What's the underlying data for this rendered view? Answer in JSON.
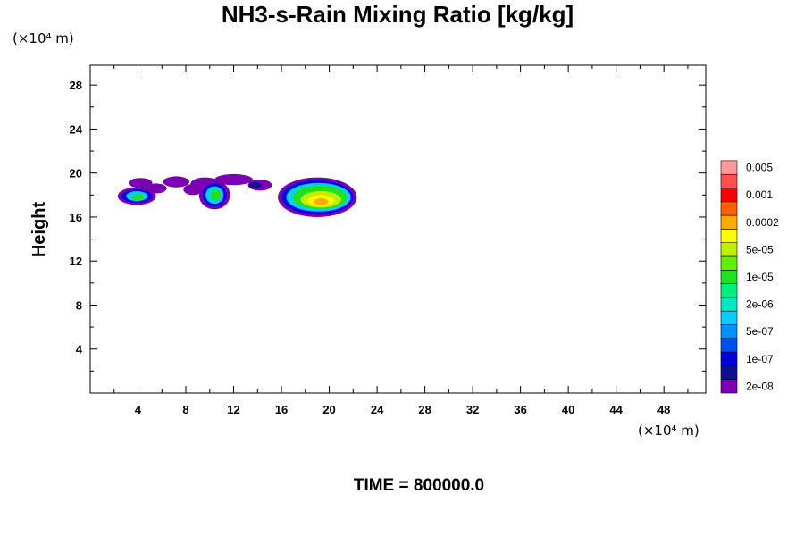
{
  "chart_data": {
    "type": "heatmap",
    "title": "NH3-s-Rain Mixing Ratio [kg/kg]",
    "xlabel": "",
    "ylabel": "Height",
    "x_unit": "(×10⁴ m)",
    "y_unit": "(×10⁴ m)",
    "footer": "TIME = 800000.0",
    "xlim": [
      0,
      51.5
    ],
    "ylim": [
      0,
      29.8
    ],
    "x_ticks": [
      4,
      8,
      12,
      16,
      20,
      24,
      28,
      32,
      36,
      40,
      44,
      48
    ],
    "y_ticks": [
      4,
      8,
      12,
      16,
      20,
      24,
      28
    ],
    "colorbar": {
      "levels": [
        {
          "color": "#7b00b4",
          "label": "2e-08"
        },
        {
          "color": "#101090",
          "label": ""
        },
        {
          "color": "#0000e0",
          "label": "1e-07"
        },
        {
          "color": "#0050f0",
          "label": ""
        },
        {
          "color": "#0090ff",
          "label": "5e-07"
        },
        {
          "color": "#00d0ff",
          "label": ""
        },
        {
          "color": "#00e8c0",
          "label": "2e-06"
        },
        {
          "color": "#00f080",
          "label": ""
        },
        {
          "color": "#20e020",
          "label": "1e-05"
        },
        {
          "color": "#60f000",
          "label": ""
        },
        {
          "color": "#c0f000",
          "label": "5e-05"
        },
        {
          "color": "#ffff00",
          "label": ""
        },
        {
          "color": "#ffaa00",
          "label": "0.0002"
        },
        {
          "color": "#ff6000",
          "label": ""
        },
        {
          "color": "#ff0000",
          "label": "0.001"
        },
        {
          "color": "#ff5050",
          "label": ""
        },
        {
          "color": "#ff9898",
          "label": "0.005"
        }
      ]
    },
    "regions": [
      {
        "level": 0,
        "x": 4.2,
        "y": 19.1,
        "rx": 1.0,
        "ry": 0.45
      },
      {
        "level": 0,
        "x": 5.5,
        "y": 18.6,
        "rx": 0.9,
        "ry": 0.45
      },
      {
        "level": 0,
        "x": 7.2,
        "y": 19.2,
        "rx": 1.1,
        "ry": 0.5
      },
      {
        "level": 0,
        "x": 8.6,
        "y": 18.5,
        "rx": 0.8,
        "ry": 0.5
      },
      {
        "level": 0,
        "x": 9.6,
        "y": 19.0,
        "rx": 1.2,
        "ry": 0.6
      },
      {
        "level": 0,
        "x": 12.0,
        "y": 19.4,
        "rx": 1.6,
        "ry": 0.5
      },
      {
        "level": 0,
        "x": 14.2,
        "y": 18.9,
        "rx": 1.0,
        "ry": 0.5
      },
      {
        "level": 1,
        "x": 13.8,
        "y": 18.9,
        "rx": 0.5,
        "ry": 0.3
      },
      {
        "level": 0,
        "x": 3.9,
        "y": 17.9,
        "rx": 1.6,
        "ry": 0.8
      },
      {
        "level": 2,
        "x": 3.9,
        "y": 17.9,
        "rx": 1.3,
        "ry": 0.6
      },
      {
        "level": 5,
        "x": 3.9,
        "y": 17.9,
        "rx": 0.9,
        "ry": 0.45
      },
      {
        "level": 8,
        "x": 4.0,
        "y": 17.8,
        "rx": 0.5,
        "ry": 0.3
      },
      {
        "level": 0,
        "x": 10.4,
        "y": 18.0,
        "rx": 1.3,
        "ry": 1.3
      },
      {
        "level": 2,
        "x": 10.4,
        "y": 18.0,
        "rx": 1.0,
        "ry": 1.05
      },
      {
        "level": 5,
        "x": 10.4,
        "y": 18.0,
        "rx": 0.75,
        "ry": 0.8
      },
      {
        "level": 8,
        "x": 10.5,
        "y": 18.0,
        "rx": 0.45,
        "ry": 0.5
      },
      {
        "level": 0,
        "x": 19.0,
        "y": 17.8,
        "rx": 3.3,
        "ry": 1.8
      },
      {
        "level": 2,
        "x": 19.0,
        "y": 17.8,
        "rx": 3.0,
        "ry": 1.55
      },
      {
        "level": 5,
        "x": 19.1,
        "y": 17.8,
        "rx": 2.7,
        "ry": 1.3
      },
      {
        "level": 8,
        "x": 19.2,
        "y": 17.8,
        "rx": 2.3,
        "ry": 1.05
      },
      {
        "level": 10,
        "x": 19.3,
        "y": 17.6,
        "rx": 1.7,
        "ry": 0.75
      },
      {
        "level": 11,
        "x": 19.3,
        "y": 17.5,
        "rx": 1.1,
        "ry": 0.5
      },
      {
        "level": 12,
        "x": 19.3,
        "y": 17.4,
        "rx": 0.6,
        "ry": 0.3
      }
    ]
  }
}
